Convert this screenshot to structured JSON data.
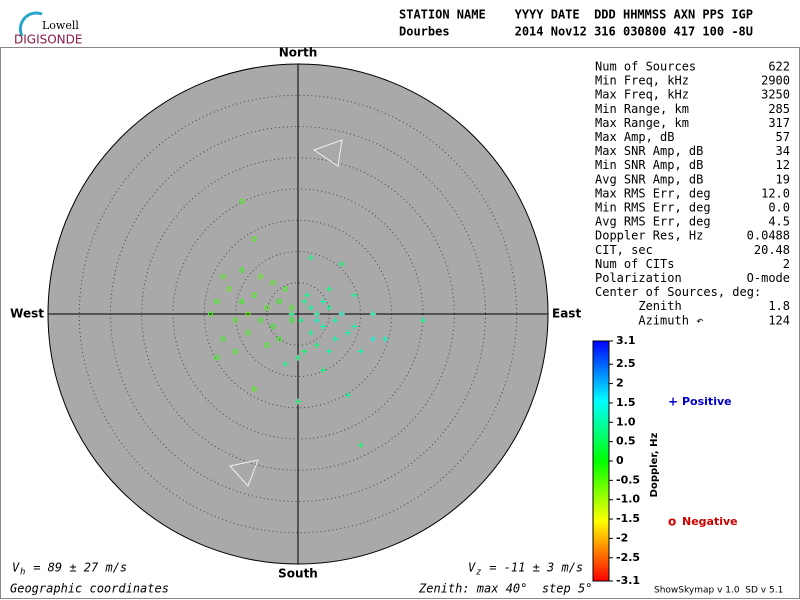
{
  "header": {
    "logo_top": "Lowell",
    "logo_bottom": "DIGISONDE",
    "line1": "STATION NAME    YYYY DATE  DDD HHMMSS AXN PPS IGP",
    "line2": "Dourbes         2014 Nov12 316 030800 417 100 -8U"
  },
  "stats": [
    [
      "Num of Sources",
      "622"
    ],
    [
      "Min Freq, kHz",
      "2900"
    ],
    [
      "Max Freq, kHz",
      "3250"
    ],
    [
      "Min Range, km",
      "285"
    ],
    [
      "Max Range, km",
      "317"
    ],
    [
      "Max Amp, dB",
      "57"
    ],
    [
      "Max SNR Amp, dB",
      "34"
    ],
    [
      "Min SNR Amp, dB",
      "12"
    ],
    [
      "Avg SNR Amp, dB",
      "19"
    ],
    [
      "Max RMS Err, deg",
      "12.0"
    ],
    [
      "Min RMS Err, deg",
      "0.0"
    ],
    [
      "Avg RMS Err, deg",
      "4.5"
    ],
    [
      "Doppler Res, Hz",
      "0.0488"
    ],
    [
      "CIT, sec",
      "20.48"
    ],
    [
      "Num of CITs",
      "2"
    ],
    [
      "Polarization",
      "O-mode"
    ],
    [
      "Center of Sources, deg:",
      ""
    ],
    [
      "      Zenith",
      "1.8"
    ],
    [
      "      Azimuth ↶",
      "124"
    ]
  ],
  "skymap": {
    "type": "scatter",
    "north": "North",
    "south": "South",
    "east": "East",
    "west": "West",
    "zenith_max": 40,
    "zenith_step": 5,
    "points": [
      [
        1,
        2,
        0.8
      ],
      [
        2,
        1,
        0.9
      ],
      [
        3,
        0,
        1.0
      ],
      [
        0.5,
        -1,
        0.8
      ],
      [
        4,
        -2,
        1.1
      ],
      [
        5,
        1,
        0.9
      ],
      [
        6,
        -1,
        1.0
      ],
      [
        2,
        -3,
        0.9
      ],
      [
        7,
        0,
        1.2
      ],
      [
        8,
        -3,
        1.1
      ],
      [
        9,
        -2,
        1.0
      ],
      [
        3,
        -5,
        0.7
      ],
      [
        1,
        -6,
        0.6
      ],
      [
        10,
        -6,
        1.0
      ],
      [
        12,
        -4,
        1.3
      ],
      [
        5,
        4,
        0.7
      ],
      [
        7,
        8,
        0.6
      ],
      [
        2,
        9,
        0.7
      ],
      [
        -2,
        -8,
        0.8
      ],
      [
        4,
        -9,
        0.7
      ],
      [
        0,
        -14,
        0.6
      ],
      [
        10,
        -21,
        0.7
      ],
      [
        8,
        -13,
        0.9
      ],
      [
        1.5,
        3,
        0.8
      ],
      [
        4,
        2,
        1.0
      ],
      [
        6,
        -4,
        1.1
      ],
      [
        -1,
        0,
        0.7
      ],
      [
        3,
        -1,
        1.2
      ],
      [
        5,
        -6,
        0.9
      ],
      [
        20,
        -1,
        0.8
      ],
      [
        12,
        0,
        1.1
      ],
      [
        9,
        3,
        0.9
      ],
      [
        0,
        -7,
        0.7
      ],
      [
        14,
        -4,
        1.2
      ],
      [
        -1,
        1,
        -0.3
      ],
      [
        -3,
        2,
        -0.2
      ],
      [
        -5,
        1,
        -0.4
      ],
      [
        -7,
        3,
        -0.3
      ],
      [
        -9,
        2,
        -0.2
      ],
      [
        -11,
        4,
        -0.5
      ],
      [
        -13,
        2,
        -0.3
      ],
      [
        -6,
        -1,
        -0.2
      ],
      [
        -4,
        -2,
        -0.1
      ],
      [
        -8,
        -3,
        -0.3
      ],
      [
        -10,
        -1,
        -0.4
      ],
      [
        -12,
        -4,
        -0.2
      ],
      [
        -2,
        4,
        -0.3
      ],
      [
        -6,
        6,
        -0.5
      ],
      [
        -9,
        7,
        -0.2
      ],
      [
        -14,
        0,
        -0.3
      ],
      [
        -8,
        0,
        -0.6
      ],
      [
        -3,
        -4,
        -0.2
      ],
      [
        -10,
        -6,
        -0.3
      ],
      [
        -4,
        5,
        -0.4
      ],
      [
        -7,
        12,
        -0.4
      ],
      [
        -9,
        18,
        -0.3
      ],
      [
        -13,
        -7,
        -0.2
      ],
      [
        -12,
        6,
        -0.4
      ],
      [
        -1,
        -1,
        -0.1
      ],
      [
        -5,
        -5,
        -0.3
      ],
      [
        -7,
        -12,
        -0.4
      ]
    ]
  },
  "colorbar": {
    "label": "Doppler, Hz",
    "lim": [
      -3.1,
      3.1
    ],
    "ticks": [
      3.1,
      2.5,
      2,
      1.5,
      {
        "value": 1,
        "label": "1.0"
      },
      0.5,
      0,
      -0.5,
      {
        "value": -1,
        "label": "-1.0"
      },
      -1.5,
      -2,
      -2.5,
      -3.1
    ]
  },
  "legend": {
    "positive_symbol": "+",
    "positive": "Positive",
    "negative_symbol": "o",
    "negative": "Negative"
  },
  "footer": {
    "vh_symbol": "V",
    "vh_sub": "h",
    "vh_text": " = 89 ± 27 m/s",
    "vz_symbol": "V",
    "vz_sub": "z",
    "vz_text": " = -11 ± 3 m/s",
    "coords": "Geographic coordinates",
    "zenith": "Zenith: max 40°  step 5°",
    "version": "ShowSkymap v 1.0  SD v 5.1"
  }
}
